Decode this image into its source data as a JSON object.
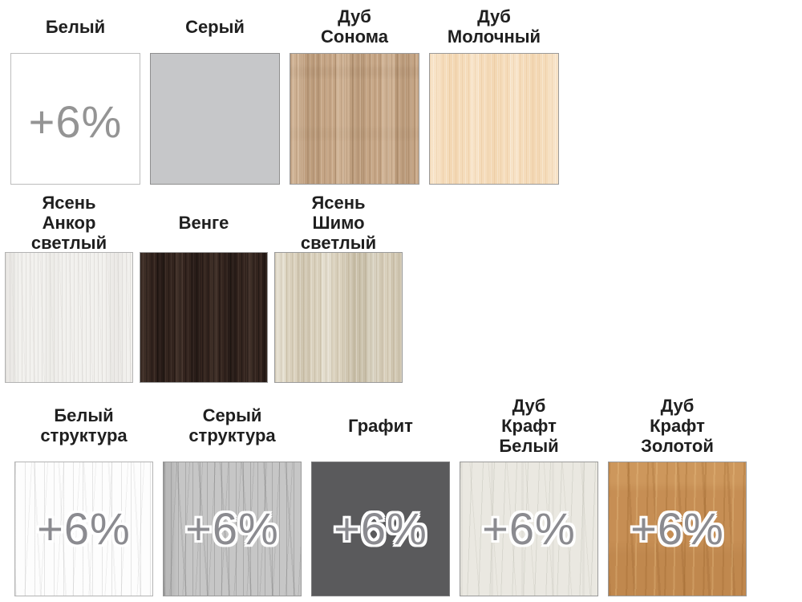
{
  "page": {
    "background": "#ffffff",
    "label_color": "#1f1f1f"
  },
  "surcharge": {
    "label": "+6%",
    "plain_color": "#949494",
    "outlined_color": "#8b8b90",
    "outline_color": "#ffffff"
  },
  "rows": [
    {
      "name": "row-1",
      "cells": [
        {
          "id": "beliy",
          "label": "Белый",
          "label_lines": [
            "Белый"
          ],
          "color": "#ffffff",
          "texture": "white",
          "surcharge": "plain"
        },
        {
          "id": "seriy",
          "label": "Серый",
          "label_lines": [
            "Серый"
          ],
          "color": "#c6c7c9",
          "texture": "gray",
          "surcharge": null
        },
        {
          "id": "dub-sonoma",
          "label": "Дуб Сонома",
          "label_lines": [
            "Дуб",
            "Сонома"
          ],
          "color": "#c7a787",
          "texture": "sonoma",
          "surcharge": null
        },
        {
          "id": "dub-molochnyy",
          "label": "Дуб Молочный",
          "label_lines": [
            "Дуб",
            "Молочный"
          ],
          "color": "#f5dcbb",
          "texture": "milky",
          "surcharge": null
        }
      ]
    },
    {
      "name": "row-2",
      "cells": [
        {
          "id": "yasen-ankor",
          "label": "Ясень Анкор светлый",
          "label_lines": [
            "Ясень",
            "Анкор",
            "светлый"
          ],
          "color": "#f2f1ee",
          "texture": "ash-anchor",
          "surcharge": null
        },
        {
          "id": "venge",
          "label": "Венге",
          "label_lines": [
            "Венге"
          ],
          "color": "#33241e",
          "texture": "wenge",
          "surcharge": null
        },
        {
          "id": "yasen-shimo",
          "label": "Ясень Шимо светлый",
          "label_lines": [
            "Ясень",
            "Шимо",
            "светлый"
          ],
          "color": "#d9d0bc",
          "texture": "ash-shimo",
          "surcharge": null
        }
      ]
    },
    {
      "name": "row-3",
      "cells": [
        {
          "id": "beliy-struktura",
          "label": "Белый структура",
          "label_lines": [
            "Белый",
            "структура"
          ],
          "color": "#fdfdfd",
          "texture": "white-structure",
          "surcharge": "outlined"
        },
        {
          "id": "seriy-struktura",
          "label": "Серый структура",
          "label_lines": [
            "Серый",
            "структура"
          ],
          "color": "#c6c6c6",
          "texture": "gray-structure",
          "surcharge": "outlined"
        },
        {
          "id": "grafit",
          "label": "Графит",
          "label_lines": [
            "Графит"
          ],
          "color": "#5a5a5c",
          "texture": "graphite",
          "surcharge": "outlined"
        },
        {
          "id": "dub-kraft-beliy",
          "label": "Дуб Крафт Белый",
          "label_lines": [
            "Дуб",
            "Крафт",
            "Белый"
          ],
          "color": "#eae8e1",
          "texture": "craft-white",
          "surcharge": "outlined"
        },
        {
          "id": "dub-kraft-zolotoy",
          "label": "Дуб Крафт Золотой",
          "label_lines": [
            "Дуб",
            "Крафт",
            "Золотой"
          ],
          "color": "#c68e54",
          "texture": "craft-gold",
          "surcharge": "outlined"
        }
      ]
    }
  ]
}
